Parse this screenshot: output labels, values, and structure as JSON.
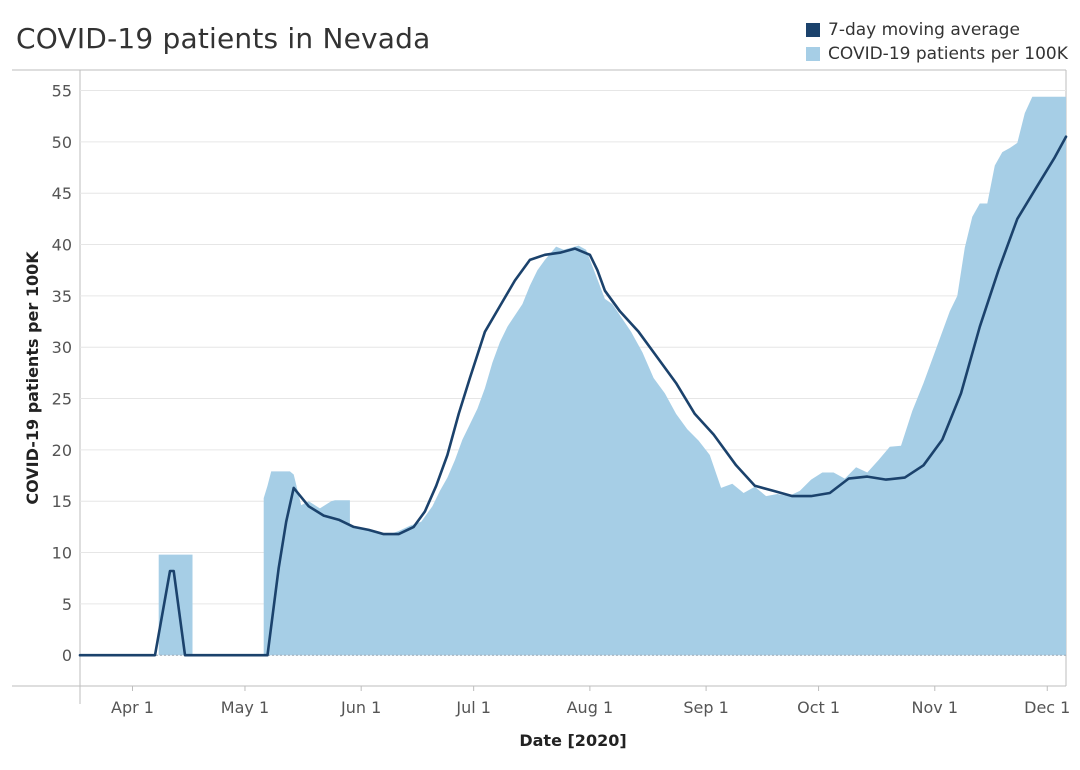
{
  "colors": {
    "bar": "#a6cee6",
    "line": "#1b426c",
    "grid": "#e6e6e6",
    "axis": "#bdbdbd"
  },
  "legend": [
    {
      "label": "7-day moving average",
      "color": "#1b426c"
    },
    {
      "label": "COVID-19 patients per 100K",
      "color": "#a6cee6"
    }
  ],
  "chart_data": {
    "type": "area",
    "title": "COVID-19 patients in Nevada",
    "xlabel": "Date [2020]",
    "ylabel": "COVID-19 patients per 100K",
    "ylim": [
      -3,
      57
    ],
    "xlim": [
      "2020-03-18",
      "2020-12-06"
    ],
    "yticks": [
      0,
      5,
      10,
      15,
      20,
      25,
      30,
      35,
      40,
      45,
      50,
      55
    ],
    "xticks": [
      {
        "date": "2020-04-01",
        "label": "Apr 1"
      },
      {
        "date": "2020-05-01",
        "label": "May 1"
      },
      {
        "date": "2020-06-01",
        "label": "Jun 1"
      },
      {
        "date": "2020-07-01",
        "label": "Jul 1"
      },
      {
        "date": "2020-08-01",
        "label": "Aug 1"
      },
      {
        "date": "2020-09-01",
        "label": "Sep 1"
      },
      {
        "date": "2020-10-01",
        "label": "Oct 1"
      },
      {
        "date": "2020-11-01",
        "label": "Nov 1"
      },
      {
        "date": "2020-12-01",
        "label": "Dec 1"
      }
    ],
    "grid": true,
    "legend_position": "top-right",
    "series": [
      {
        "name": "COVID-19 patients per 100K",
        "kind": "area",
        "x": [
          "2020-03-18",
          "2020-04-08",
          "2020-04-08",
          "2020-04-17",
          "2020-04-17",
          "2020-05-06",
          "2020-05-06",
          "2020-05-07",
          "2020-05-08",
          "2020-05-13",
          "2020-05-14",
          "2020-05-16",
          "2020-05-18",
          "2020-05-21",
          "2020-05-24",
          "2020-05-25",
          "2020-05-29",
          "2020-05-29",
          "2020-06-01",
          "2020-06-03",
          "2020-06-05",
          "2020-06-08",
          "2020-06-11",
          "2020-06-14",
          "2020-06-17",
          "2020-06-20",
          "2020-06-22",
          "2020-06-24",
          "2020-06-26",
          "2020-06-28",
          "2020-06-30",
          "2020-07-02",
          "2020-07-04",
          "2020-07-06",
          "2020-07-08",
          "2020-07-10",
          "2020-07-14",
          "2020-07-16",
          "2020-07-18",
          "2020-07-20",
          "2020-07-23",
          "2020-07-25",
          "2020-07-29",
          "2020-07-31",
          "2020-08-05",
          "2020-08-07",
          "2020-08-12",
          "2020-08-15",
          "2020-08-18",
          "2020-08-21",
          "2020-08-24",
          "2020-08-27",
          "2020-08-30",
          "2020-09-02",
          "2020-09-05",
          "2020-09-08",
          "2020-09-11",
          "2020-09-14",
          "2020-09-17",
          "2020-09-20",
          "2020-09-23",
          "2020-09-26",
          "2020-09-29",
          "2020-10-02",
          "2020-10-05",
          "2020-10-08",
          "2020-10-11",
          "2020-10-14",
          "2020-10-17",
          "2020-10-20",
          "2020-10-23",
          "2020-10-26",
          "2020-10-29",
          "2020-11-01",
          "2020-11-03",
          "2020-11-05",
          "2020-11-07",
          "2020-11-09",
          "2020-11-11",
          "2020-11-13",
          "2020-11-15",
          "2020-11-17",
          "2020-11-19",
          "2020-11-21",
          "2020-11-23",
          "2020-11-25",
          "2020-11-27",
          "2020-11-29",
          "2020-12-01",
          "2020-12-02",
          "2020-12-03",
          "2020-12-06"
        ],
        "y": [
          0,
          0,
          9.8,
          9.8,
          0,
          0,
          15.3,
          16.5,
          17.9,
          17.9,
          17.6,
          14.6,
          15.0,
          14.3,
          15.0,
          15.1,
          15.1,
          12.7,
          12.3,
          12.3,
          12.1,
          11.7,
          12.1,
          12.6,
          13.0,
          14.5,
          16.0,
          17.3,
          19.0,
          21.0,
          22.5,
          24.0,
          26.0,
          28.5,
          30.5,
          32.0,
          34.2,
          36.0,
          37.5,
          38.5,
          39.8,
          39.5,
          39.9,
          39.5,
          34.7,
          34.2,
          31.5,
          29.5,
          27.0,
          25.5,
          23.5,
          22.0,
          20.9,
          19.5,
          16.3,
          16.7,
          15.8,
          16.4,
          15.5,
          15.7,
          15.5,
          16.0,
          17.1,
          17.8,
          17.8,
          17.2,
          18.3,
          17.8,
          19.0,
          20.3,
          20.4,
          23.8,
          26.5,
          29.5,
          31.5,
          33.5,
          35.0,
          39.7,
          42.7,
          44.0,
          44.0,
          47.7,
          49.0,
          49.4,
          49.9,
          52.8,
          54.4,
          54.4,
          54.4,
          54.4,
          54.4,
          54.4
        ]
      },
      {
        "name": "7-day moving average",
        "kind": "line",
        "x": [
          "2020-03-18",
          "2020-04-07",
          "2020-04-11",
          "2020-04-12",
          "2020-04-15",
          "2020-05-07",
          "2020-05-10",
          "2020-05-12",
          "2020-05-14",
          "2020-05-18",
          "2020-05-22",
          "2020-05-26",
          "2020-05-30",
          "2020-06-03",
          "2020-06-07",
          "2020-06-11",
          "2020-06-15",
          "2020-06-18",
          "2020-06-21",
          "2020-06-24",
          "2020-06-27",
          "2020-06-30",
          "2020-07-04",
          "2020-07-08",
          "2020-07-12",
          "2020-07-16",
          "2020-07-20",
          "2020-07-24",
          "2020-07-28",
          "2020-08-01",
          "2020-08-03",
          "2020-08-05",
          "2020-08-09",
          "2020-08-14",
          "2020-08-19",
          "2020-08-24",
          "2020-08-29",
          "2020-09-03",
          "2020-09-09",
          "2020-09-14",
          "2020-09-19",
          "2020-09-24",
          "2020-09-29",
          "2020-10-04",
          "2020-10-09",
          "2020-10-14",
          "2020-10-19",
          "2020-10-24",
          "2020-10-29",
          "2020-11-03",
          "2020-11-08",
          "2020-11-13",
          "2020-11-18",
          "2020-11-23",
          "2020-11-28",
          "2020-12-03",
          "2020-12-06"
        ],
        "y": [
          0,
          0,
          8.2,
          8.2,
          0,
          0,
          8.5,
          13.0,
          16.3,
          14.5,
          13.6,
          13.2,
          12.5,
          12.2,
          11.8,
          11.8,
          12.5,
          14.0,
          16.5,
          19.5,
          23.5,
          27.0,
          31.5,
          34.0,
          36.5,
          38.5,
          39.0,
          39.2,
          39.6,
          39.0,
          37.5,
          35.5,
          33.5,
          31.5,
          29.0,
          26.5,
          23.5,
          21.5,
          18.5,
          16.5,
          16.0,
          15.5,
          15.5,
          15.8,
          17.2,
          17.4,
          17.1,
          17.3,
          18.5,
          21.0,
          25.5,
          32.0,
          37.5,
          42.5,
          45.5,
          48.5,
          50.5
        ]
      }
    ]
  }
}
